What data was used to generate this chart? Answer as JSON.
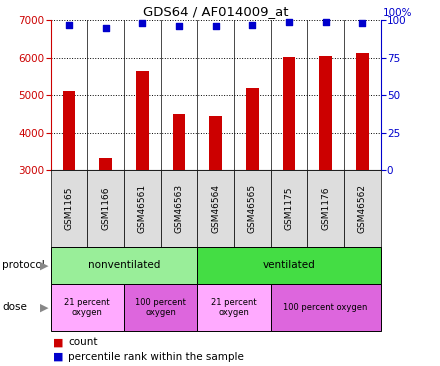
{
  "title": "GDS64 / AF014009_at",
  "samples": [
    "GSM1165",
    "GSM1166",
    "GSM46561",
    "GSM46563",
    "GSM46564",
    "GSM46565",
    "GSM1175",
    "GSM1176",
    "GSM46562"
  ],
  "counts": [
    5100,
    3320,
    5650,
    4490,
    4440,
    5180,
    6020,
    6050,
    6120
  ],
  "percentile_ranks": [
    97,
    95,
    98,
    96,
    96,
    97,
    99,
    99,
    98
  ],
  "ylim_left": [
    3000,
    7000
  ],
  "ylim_right": [
    0,
    100
  ],
  "yticks_left": [
    3000,
    4000,
    5000,
    6000,
    7000
  ],
  "yticks_right": [
    0,
    25,
    50,
    75,
    100
  ],
  "bar_color": "#cc0000",
  "dot_color": "#0000cc",
  "protocol_nonventilated_color": "#99ee99",
  "protocol_ventilated_color": "#44dd44",
  "dose_21pct_color": "#ffaaff",
  "dose_100pct_color": "#dd66dd",
  "tick_label_color_left": "#cc0000",
  "tick_label_color_right": "#0000cc",
  "legend_count_color": "#cc0000",
  "legend_percentile_color": "#0000cc",
  "background_color": "#ffffff",
  "sample_box_color": "#dddddd",
  "grid_color": "#000000",
  "protocol_nonvent_samples": 4,
  "protocol_vent_samples": 5,
  "dose_groups_starts": [
    0,
    2,
    4,
    6
  ],
  "dose_groups_ends": [
    2,
    4,
    6,
    9
  ],
  "dose_groups_labels": [
    "21 percent\noxygen",
    "100 percent\noxygen",
    "21 percent\noxygen",
    "100 percent oxygen"
  ],
  "dose_groups_colors": [
    "#ffaaff",
    "#dd66dd",
    "#ffaaff",
    "#dd66dd"
  ]
}
